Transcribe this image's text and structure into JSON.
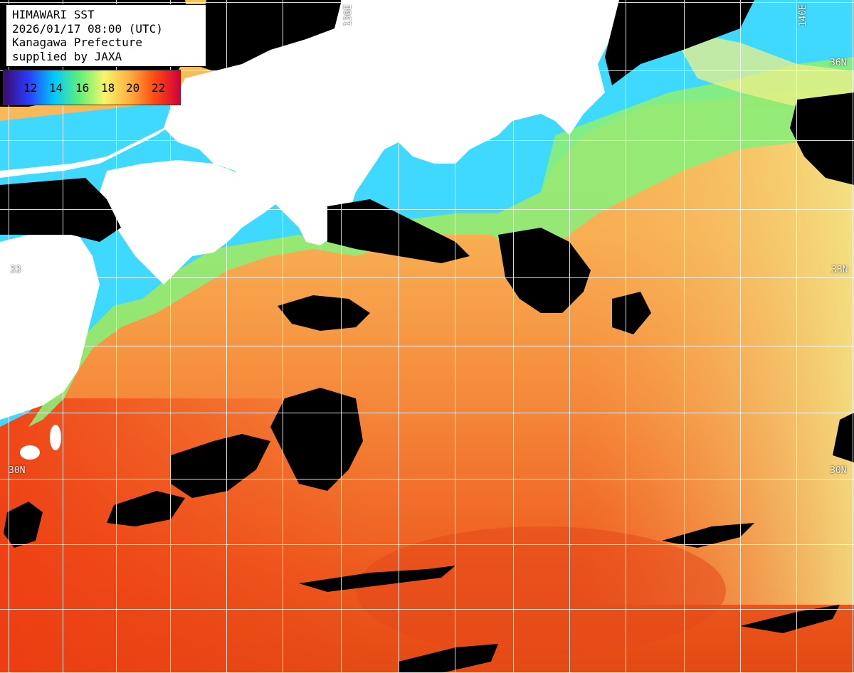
{
  "title": {
    "line1": "HIMAWARI SST",
    "line2": "2026/01/17 08:00 (UTC)",
    "line3": "Kanagawa Prefecture",
    "line4": "supplied by JAXA"
  },
  "legend": {
    "ticks": [
      "12",
      "14",
      "16",
      "18",
      "20",
      "22"
    ],
    "colors": [
      "#3a0a6e",
      "#2a3cff",
      "#00c8ff",
      "#5ef07a",
      "#f6f66a",
      "#ffb040",
      "#ff4a10",
      "#d0003a"
    ]
  },
  "grid_labels": {
    "lat_33_left": "33",
    "lat_33_right": "33N",
    "lat_30_left": "30N",
    "lat_30_right": "30N",
    "lat_36_right": "36N",
    "lon_136": "136E",
    "lon_140": "140E"
  },
  "colors": {
    "land": "#ffffff",
    "no_data": "#000000",
    "cool_water": "#32d6ff",
    "mild_water": "#8ef07a",
    "warm_water": "#f9a44c",
    "hot_water": "#f05020",
    "grid": "#ffffff"
  }
}
